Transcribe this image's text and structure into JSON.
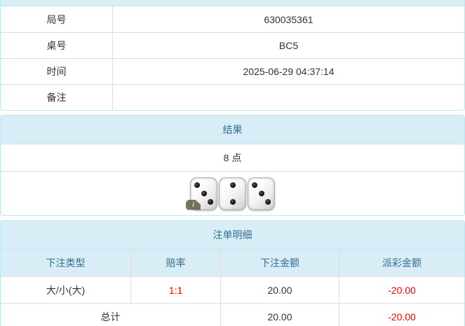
{
  "colors": {
    "heading_bg": "#d9edf7",
    "panel_border": "#bce8f1",
    "heading_text": "#31708f",
    "negative_text": "#ff0000"
  },
  "info_panel": {
    "rows": [
      {
        "label": "局号",
        "value": "630035361"
      },
      {
        "label": "桌号",
        "value": "BC5"
      },
      {
        "label": "时间",
        "value": "2025-06-29 04:37:14"
      },
      {
        "label": "备注",
        "value": ""
      }
    ]
  },
  "result_panel": {
    "title": "结果",
    "points": "8 点",
    "dice": [
      3,
      2,
      3
    ],
    "info_badge": "i"
  },
  "bets_panel": {
    "title": "注单明细",
    "columns": [
      "下注类型",
      "赔率",
      "下注金额",
      "派彩金额"
    ],
    "rows": [
      {
        "type": "大/小(大)",
        "odds": "1:1",
        "amount": "20.00",
        "payout": "-20.00"
      }
    ],
    "total": {
      "label": "总计",
      "amount": "20.00",
      "payout": "-20.00"
    }
  }
}
